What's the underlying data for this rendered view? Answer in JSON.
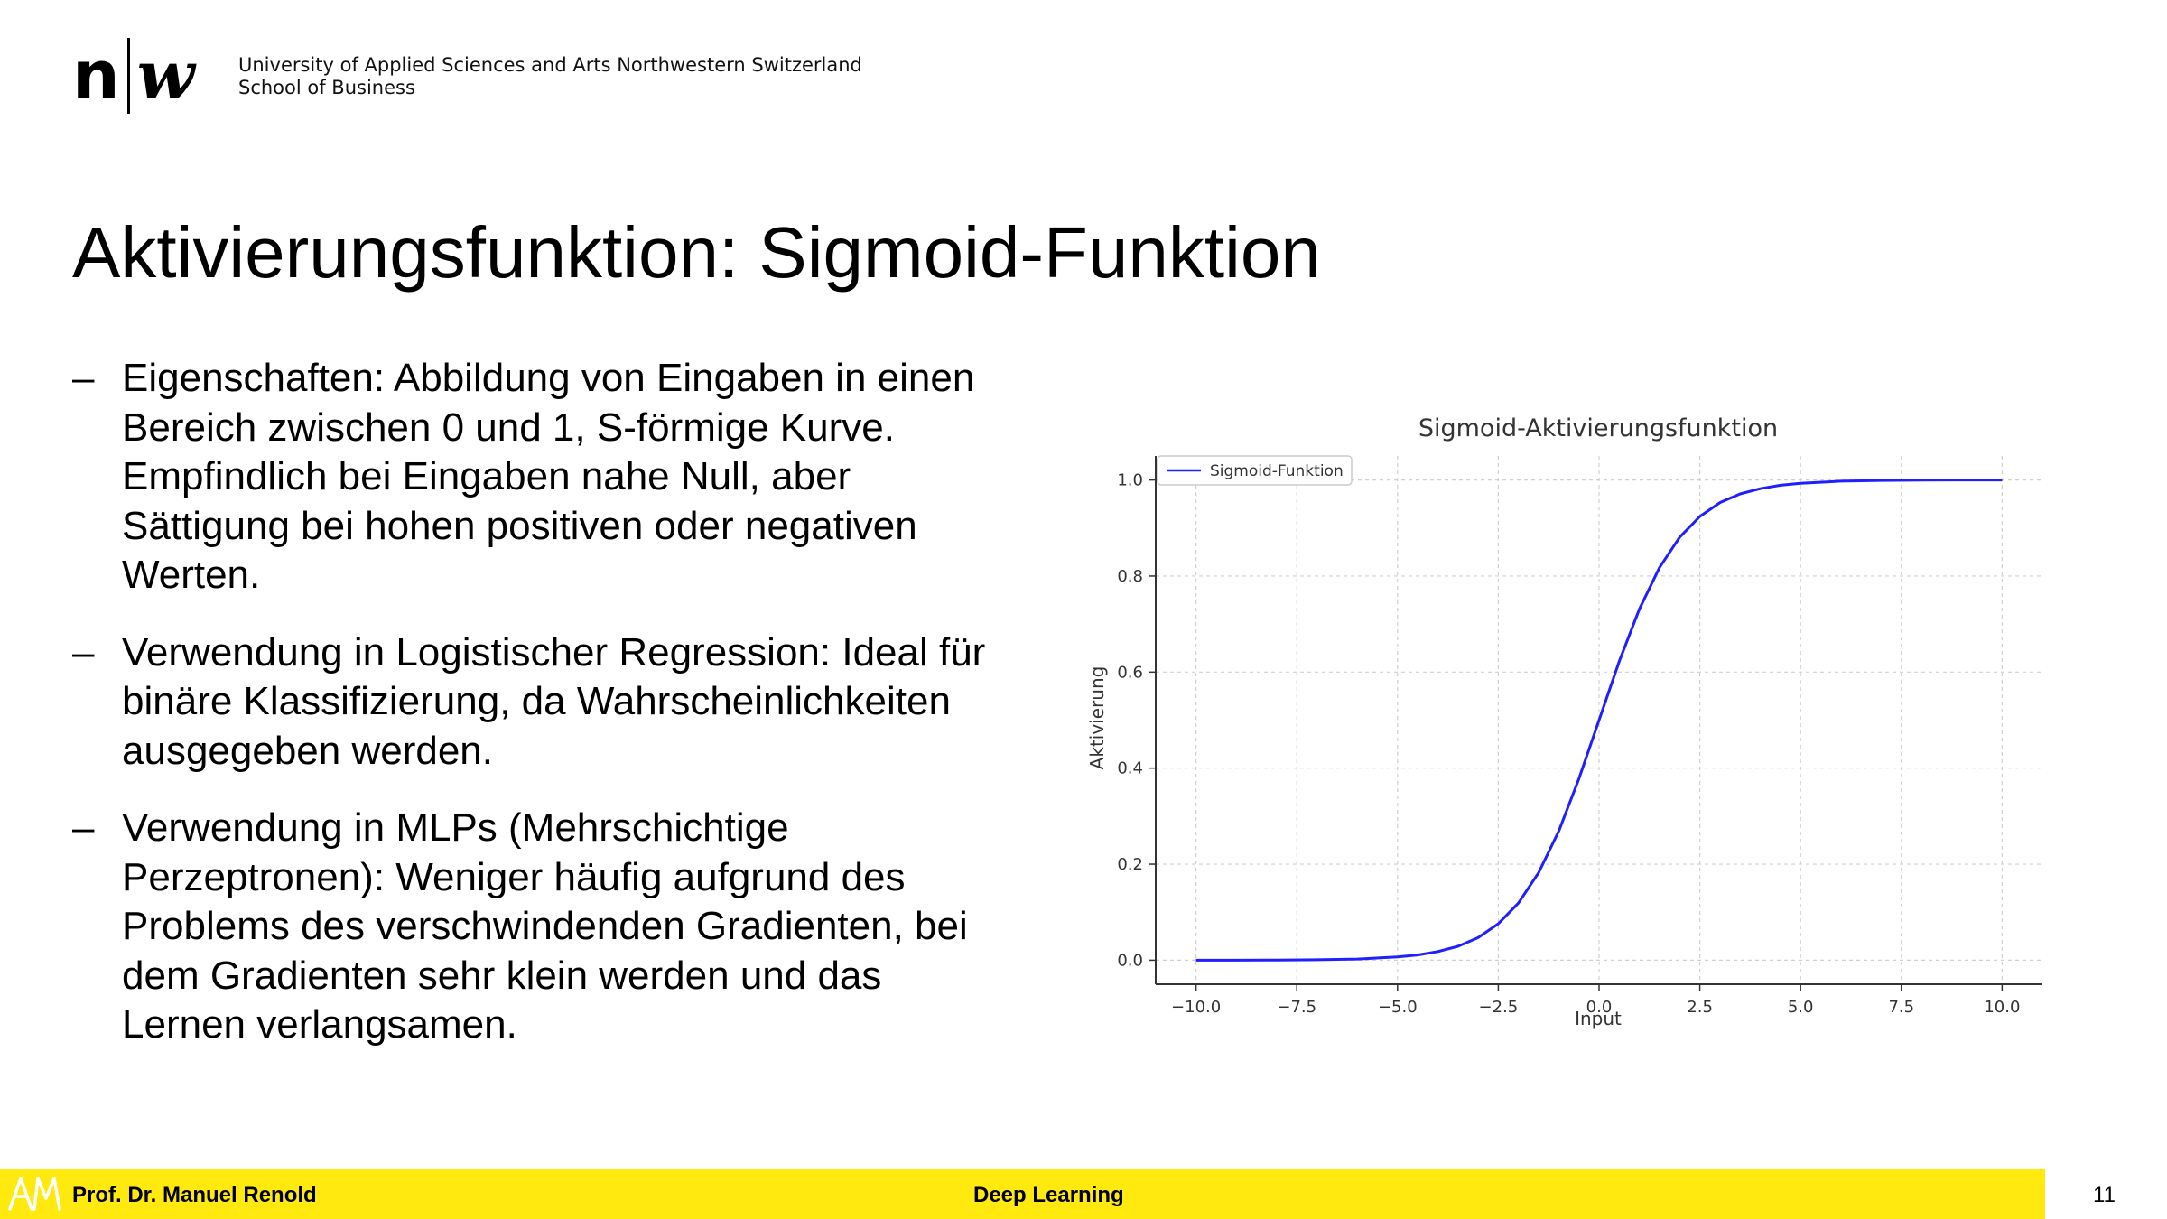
{
  "header": {
    "logo_left": "n",
    "logo_right": "w",
    "institution_line1": "University of Applied Sciences and Arts Northwestern Switzerland",
    "institution_line2": "School of Business"
  },
  "slide": {
    "title": "Aktivierungsfunktion: Sigmoid-Funktion",
    "bullet_marker": "–",
    "bullets": [
      {
        "lines": [
          "Eigenschaften: Abbildung von Eingaben in einen",
          "Bereich zwischen 0 und 1, S-förmige Kurve.",
          "Empfindlich bei Eingaben nahe Null, aber",
          "Sättigung bei hohen positiven oder negativen",
          "Werten."
        ]
      },
      {
        "lines": [
          "Verwendung in Logistischer Regression: Ideal für",
          "binäre Klassifizierung, da Wahrscheinlichkeiten",
          "ausgegeben werden."
        ]
      },
      {
        "lines": [
          "Verwendung in MLPs (Mehrschichtige",
          "Perzeptronen): Weniger häufig aufgrund des",
          "Problems des verschwindenden Gradienten, bei",
          "dem Gradienten sehr klein werden und das",
          "Lernen verlangsamen."
        ]
      }
    ]
  },
  "chart_data": {
    "type": "line",
    "title": "Sigmoid-Aktivierungsfunktion",
    "xlabel": "Input",
    "ylabel": "Aktivierung",
    "xlim": [
      -11,
      11
    ],
    "ylim": [
      -0.05,
      1.05
    ],
    "xticks": [
      -10,
      -7.5,
      -5,
      -2.5,
      0,
      2.5,
      5,
      7.5,
      10
    ],
    "xtick_labels": [
      "−10.0",
      "−7.5",
      "−5.0",
      "−2.5",
      "0.0",
      "2.5",
      "5.0",
      "7.5",
      "10.0"
    ],
    "yticks": [
      0,
      0.2,
      0.4,
      0.6,
      0.8,
      1.0
    ],
    "ytick_labels": [
      "0.0",
      "0.2",
      "0.4",
      "0.6",
      "0.8",
      "1.0"
    ],
    "grid": true,
    "legend_position": "top-left",
    "series": [
      {
        "name": "Sigmoid-Funktion",
        "color": "#1f1fff",
        "x": [
          -10,
          -9,
          -8,
          -7,
          -6,
          -5,
          -4.5,
          -4,
          -3.5,
          -3,
          -2.5,
          -2,
          -1.5,
          -1,
          -0.5,
          0,
          0.5,
          1,
          1.5,
          2,
          2.5,
          3,
          3.5,
          4,
          4.5,
          5,
          6,
          7,
          8,
          9,
          10
        ],
        "y": [
          5e-05,
          0.0001,
          0.0003,
          0.0009,
          0.0025,
          0.0067,
          0.011,
          0.018,
          0.029,
          0.047,
          0.076,
          0.119,
          0.182,
          0.269,
          0.378,
          0.5,
          0.622,
          0.731,
          0.818,
          0.881,
          0.924,
          0.953,
          0.971,
          0.982,
          0.989,
          0.9933,
          0.9975,
          0.9991,
          0.9997,
          0.9999,
          0.99995
        ]
      }
    ]
  },
  "footer": {
    "monogram": "AM",
    "author": "Prof. Dr. Manuel Renold",
    "course": "Deep Learning",
    "page_number": "11",
    "bar_color": "#FFE90F"
  }
}
